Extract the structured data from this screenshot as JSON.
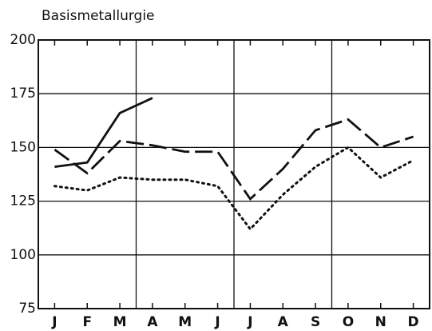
{
  "chart_data": {
    "type": "line",
    "title": "Basismetallurgie",
    "categories": [
      "J",
      "F",
      "M",
      "A",
      "M",
      "J",
      "J",
      "A",
      "S",
      "O",
      "N",
      "D"
    ],
    "series": [
      {
        "color": "#111111",
        "dash": "solid",
        "values": [
          141,
          143,
          166,
          173,
          null,
          null,
          null,
          null,
          null,
          null,
          null,
          null
        ]
      },
      {
        "color": "#111111",
        "dash": "dashed",
        "values": [
          149,
          138,
          153,
          151,
          148,
          148,
          126,
          140,
          158,
          163,
          150,
          155
        ]
      },
      {
        "color": "#111111",
        "dash": "dotted",
        "values": [
          132,
          130,
          136,
          135,
          135,
          132,
          112,
          128,
          141,
          150,
          136,
          144
        ]
      }
    ],
    "ylim": [
      75,
      200
    ],
    "yticks": [
      75,
      100,
      125,
      150,
      175,
      200
    ],
    "grid": true
  }
}
